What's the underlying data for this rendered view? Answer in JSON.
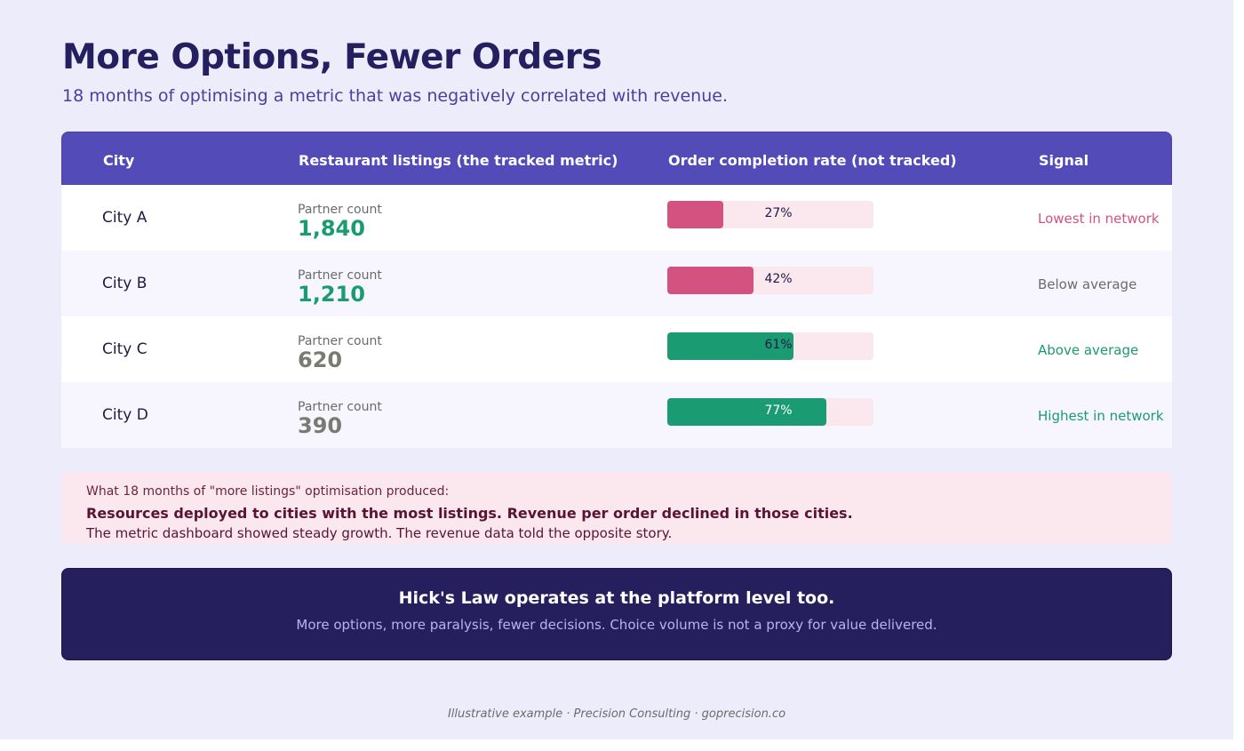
{
  "header": {
    "title": "More Options, Fewer Orders",
    "subtitle": "18 months of optimising a metric that was negatively correlated with revenue."
  },
  "table": {
    "columns": [
      "City",
      "Restaurant listings (the tracked metric)",
      "Order completion rate (not tracked)",
      "Signal"
    ],
    "rows": [
      {
        "city": "City A",
        "listing_label": "Partner count",
        "listings": "1,840",
        "listings_color": "#1a9b72",
        "rate_label": "27%",
        "rate": 27,
        "bar_color": "#d4527f",
        "signal": "Lowest in network",
        "signal_color": "#d4527f"
      },
      {
        "city": "City B",
        "listing_label": "Partner count",
        "listings": "1,210",
        "listings_color": "#1a9b72",
        "rate_label": "42%",
        "rate": 42,
        "bar_color": "#d4527f",
        "signal": "Below average",
        "signal_color": "#6b6b6b"
      },
      {
        "city": "City C",
        "listing_label": "Partner count",
        "listings": "620",
        "listings_color": "#7a7a72",
        "rate_label": "61%",
        "rate": 61,
        "bar_color": "#1a9b72",
        "signal": "Above average",
        "signal_color": "#1a9b72"
      },
      {
        "city": "City D",
        "listing_label": "Partner count",
        "listings": "390",
        "listings_color": "#7a7a72",
        "rate_label": "77%",
        "rate": 77,
        "bar_color": "#1a9b72",
        "signal": "Highest in network",
        "signal_color": "#1a9b72"
      }
    ]
  },
  "callout": {
    "intro": "What 18 months of \"more listings\" optimisation produced:",
    "headline": "Resources deployed to cities with the most listings. Revenue per order declined in those cities.",
    "body": "The metric dashboard showed steady growth. The revenue data told the opposite story."
  },
  "banner": {
    "heading": "Hick's Law operates at the platform level too.",
    "subtext": "More options, more paralysis, fewer decisions. Choice volume is not a proxy for value delivered."
  },
  "footer": "Illustrative example · Precision Consulting · goprecision.co"
}
